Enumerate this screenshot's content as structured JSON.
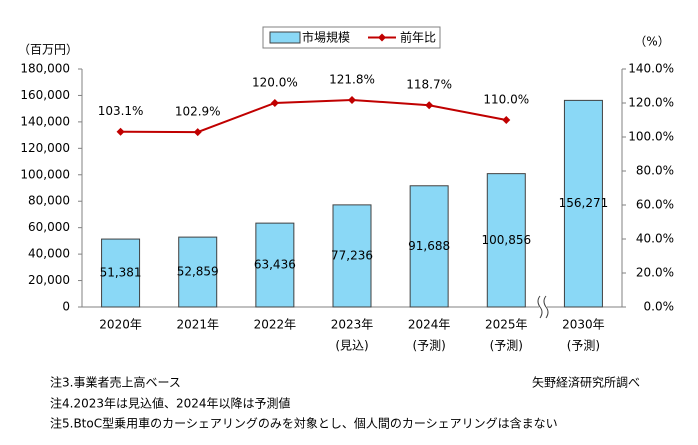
{
  "chart_data": {
    "type": "bar",
    "y_unit": "（百万円）",
    "y2_unit": "（%）",
    "categories": [
      "2020年",
      "2021年",
      "2022年",
      "2023年",
      "2024年",
      "2025年",
      "2030年"
    ],
    "category_notes": [
      null,
      null,
      null,
      "(見込)",
      "(予測)",
      "(予測)",
      "(予測)"
    ],
    "series": [
      {
        "name": "市場規模",
        "type": "bar",
        "color": "#8ad8f6",
        "edge": "#404040",
        "values": [
          51381,
          52859,
          63436,
          77236,
          91688,
          100856,
          156271
        ],
        "value_labels": [
          "51,381",
          "52,859",
          "63,436",
          "77,236",
          "91,688",
          "100,856",
          "156,271"
        ]
      },
      {
        "name": "前年比",
        "type": "line",
        "axis": "y2",
        "color": "#c00000",
        "values": [
          103.1,
          102.9,
          120.0,
          121.8,
          118.7,
          110.0,
          null
        ],
        "value_labels": [
          "103.1%",
          "102.9%",
          "120.0%",
          "121.8%",
          "118.7%",
          "110.0%",
          null
        ]
      }
    ],
    "ylim": [
      0,
      180000
    ],
    "yticks": [
      0,
      {
        "value": 20000,
        "label": "20,000"
      },
      {
        "value": 40000,
        "label": "40,000"
      },
      {
        "value": 60000,
        "label": "60,000"
      },
      {
        "value": 80000,
        "label": "80,000"
      },
      {
        "value": 100000,
        "label": "100,000"
      },
      {
        "value": 120000,
        "label": "120,000"
      },
      {
        "value": 140000,
        "label": "140,000"
      },
      {
        "value": 160000,
        "label": "160,000"
      },
      {
        "value": 180000,
        "label": "180,000"
      }
    ],
    "y2lim": [
      0,
      140
    ],
    "y2ticks": [
      {
        "value": 0,
        "label": "0.0%"
      },
      {
        "value": 20,
        "label": "20.0%"
      },
      {
        "value": 40,
        "label": "40.0%"
      },
      {
        "value": 60,
        "label": "60.0%"
      },
      {
        "value": 80,
        "label": "80.0%"
      },
      {
        "value": 100,
        "label": "100.0%"
      },
      {
        "value": 120,
        "label": "120.0%"
      },
      {
        "value": 140,
        "label": "140.0%"
      }
    ],
    "notes": [
      "注3.事業者売上高ベース",
      "注4.2023年は見込値、2024年以降は予測値",
      "注5.BtoC型乗用車のカーシェアリングのみを対象とし、個人間のカーシェアリングは含まない"
    ],
    "source": "矢野経済研究所調べ"
  }
}
